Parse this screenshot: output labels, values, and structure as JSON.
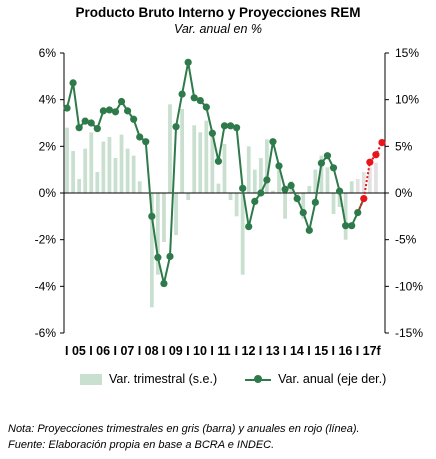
{
  "chart_data": {
    "type": "bar+line",
    "title": "Producto Bruto Interno y Proyecciones REM",
    "subtitle": "Var. anual en %",
    "left_axis": {
      "ylim": [
        -6,
        6
      ],
      "ticks": [
        "6%",
        "4%",
        "2%",
        "0%",
        "-2%",
        "-4%",
        "-6%"
      ]
    },
    "right_axis": {
      "ylim": [
        -15,
        15
      ],
      "ticks": [
        "15%",
        "10%",
        "5%",
        "0%",
        "-5%",
        "-10%",
        "-15%"
      ]
    },
    "x_labels": [
      "I 05",
      "I 06",
      "I 07",
      "I 08",
      "I 09",
      "I 10",
      "I 11",
      "I 12",
      "I 13",
      "I 14",
      "I 15",
      "I 16",
      "I 17f"
    ],
    "quarters_per_year": 4,
    "series": [
      {
        "name": "Var. trimestral (s.e.)",
        "axis": "left",
        "kind": "bar",
        "color": "#c9dfcf",
        "forecast_color": "#e2e2e2",
        "values": [
          2.8,
          1.8,
          0.6,
          1.9,
          2.6,
          0.9,
          2.2,
          2.4,
          1.5,
          2.5,
          1.9,
          1.6,
          0.5,
          0.0,
          -4.9,
          -3.5,
          -2.1,
          3.8,
          -1.8,
          3.6,
          -0.3,
          2.9,
          2.6,
          3.1,
          2.5,
          0.4,
          2.1,
          -0.3,
          -1.0,
          -3.5,
          2.0,
          1.0,
          1.5,
          2.3,
          0.1,
          1.0,
          -1.1,
          0.5,
          -0.1,
          -1.1,
          0.3,
          1.0,
          1.6,
          1.1,
          -0.9,
          -0.6,
          -2.0,
          0.5,
          0.6,
          0.9,
          1.1,
          1.3
        ],
        "forecast_from_index": 48
      },
      {
        "name": "Var. anual (eje der.)",
        "axis": "right",
        "kind": "line",
        "color": "#2e7a4a",
        "forecast_color": "#e8151b",
        "values": [
          9.1,
          11.8,
          7.0,
          7.7,
          7.5,
          6.9,
          8.8,
          8.9,
          8.7,
          9.8,
          8.8,
          7.9,
          6.0,
          5.5,
          -2.5,
          -6.9,
          -9.7,
          -6.8,
          7.1,
          10.6,
          14.0,
          10.2,
          9.9,
          9.2,
          6.4,
          3.4,
          7.2,
          7.2,
          7.0,
          0.5,
          -3.6,
          -0.9,
          0.0,
          1.4,
          5.5,
          2.9,
          0.4,
          0.8,
          -0.6,
          -2.1,
          -4.0,
          -1.0,
          3.2,
          4.0,
          2.7,
          0.2,
          -3.5,
          -3.5,
          -2.1,
          -0.6,
          3.3,
          4.1,
          5.4
        ],
        "forecast_from_index": 49
      }
    ],
    "grid": false
  },
  "legend": {
    "bar_label": "Var. trimestral (s.e.)",
    "line_label": "Var. anual (eje der.)"
  },
  "notes": {
    "line1": "Nota: Proyecciones trimestrales en gris (barra) y anuales en rojo (línea).",
    "line2": "Fuente: Elaboración propia en base a BCRA e INDEC."
  }
}
